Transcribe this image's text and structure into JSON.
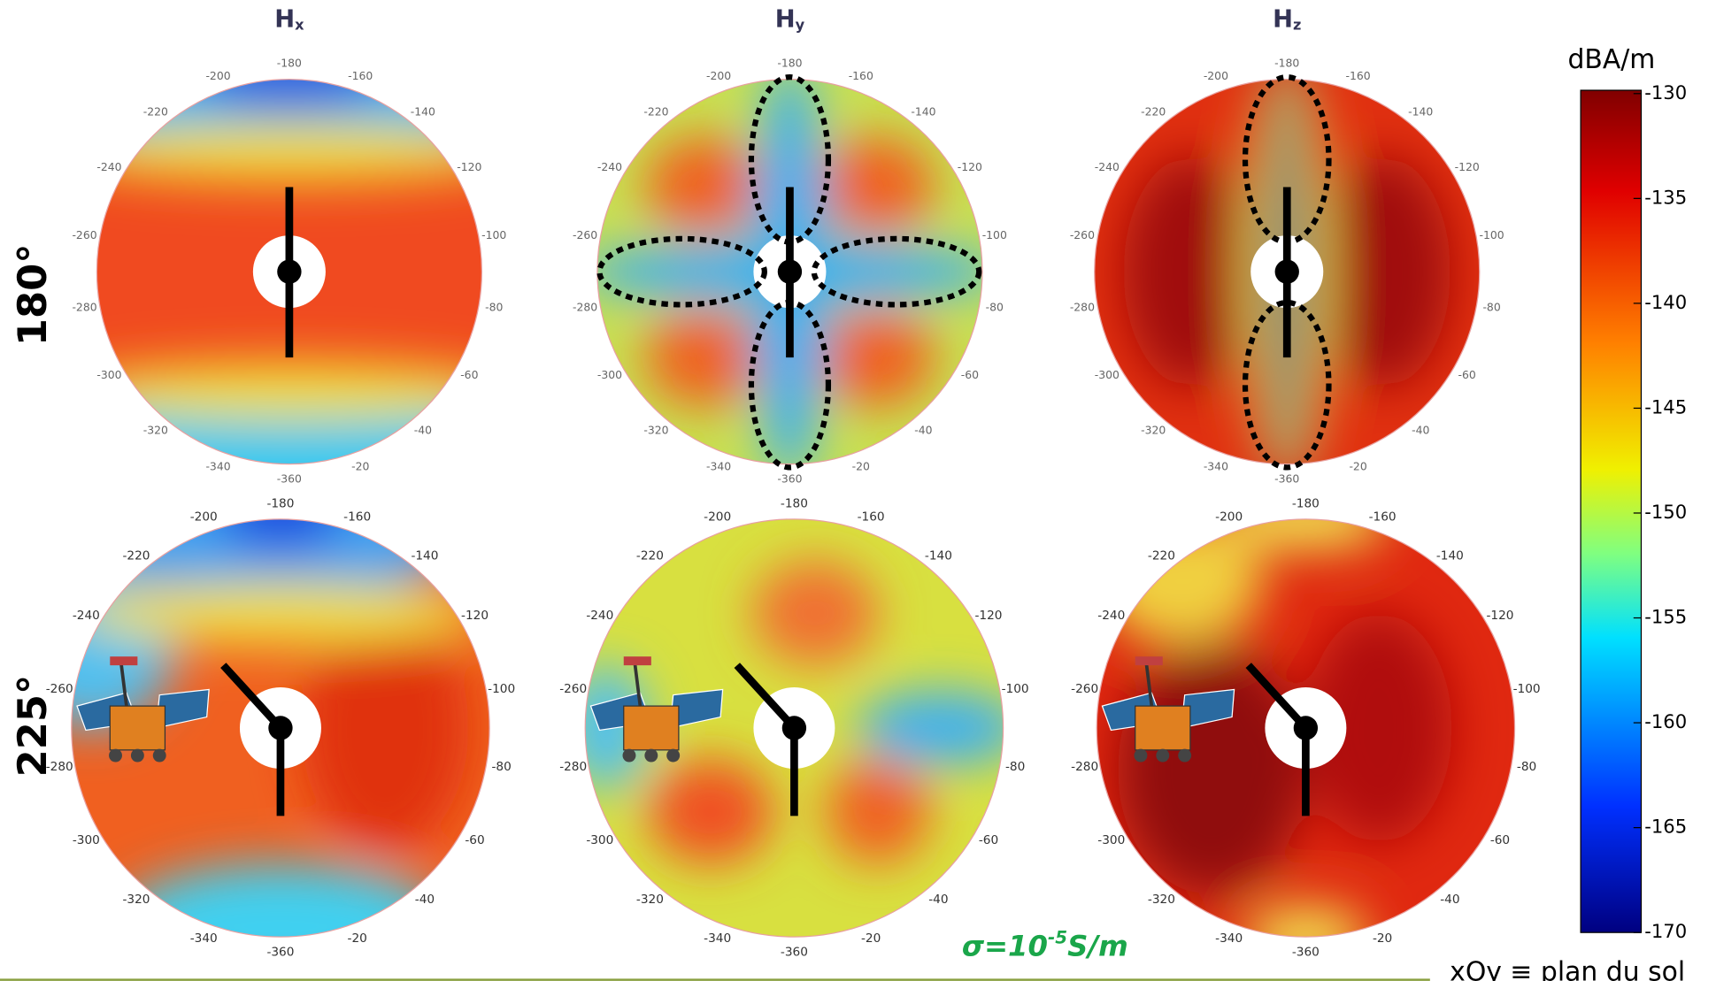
{
  "chart_data": {
    "type": "polar-heatmap",
    "columns": [
      {
        "symbol": "H",
        "sub": "x"
      },
      {
        "symbol": "H",
        "sub": "y"
      },
      {
        "symbol": "H",
        "sub": "z"
      }
    ],
    "rows": [
      "180°",
      "225°"
    ],
    "angle_ticks": [
      -180,
      -160,
      -140,
      -120,
      -100,
      -80,
      -60,
      -40,
      -20,
      -360,
      -340,
      -320,
      -300,
      -280,
      -260,
      -240,
      -220,
      -200
    ],
    "colorbar": {
      "label": "dBA/m",
      "lim": [
        -170,
        -130
      ],
      "ticks": [
        -130,
        -135,
        -140,
        -145,
        -150,
        -155,
        -160,
        -165,
        -170
      ]
    },
    "annotation": {
      "text": "σ=10",
      "sup": "-5",
      "unit": "S/m"
    },
    "footer": "xOy ≡ plan du sol"
  }
}
